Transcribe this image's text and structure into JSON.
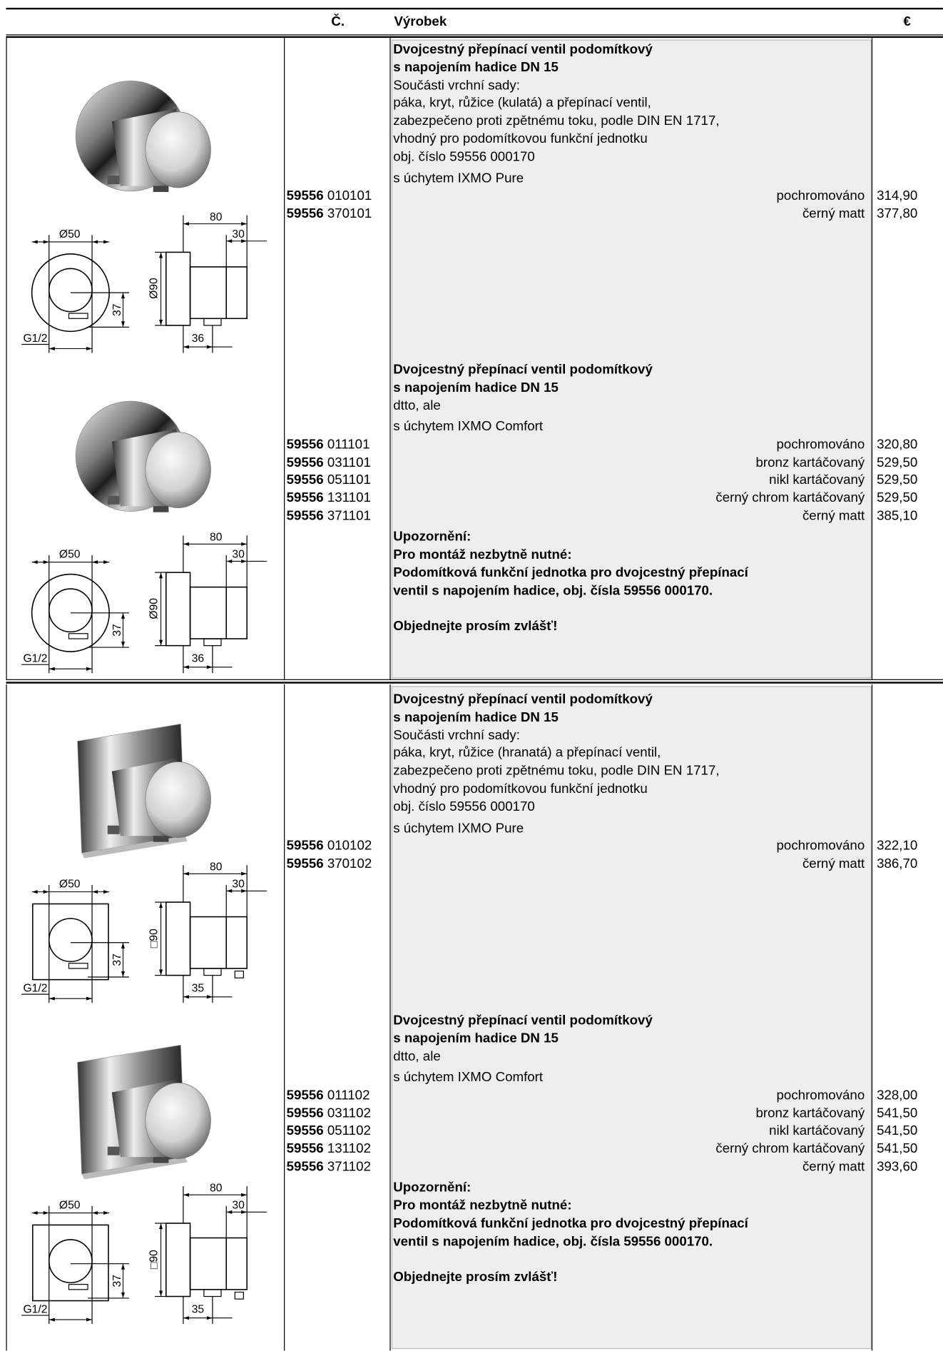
{
  "header": {
    "number": "Č.",
    "product": "Výrobek",
    "price": "€"
  },
  "sections": [
    {
      "items": [
        {
          "title": [
            "Dvojcestný přepínací ventil podomítkový",
            "s napojením hadice DN 15"
          ],
          "description": [
            "Součásti vrchní sady:",
            "páka, kryt, růžice (kulatá) a přepínací ventil,",
            "zabezpečeno proti zpětnému toku, podle DIN EN 1717,",
            "vhodný pro podomítkovou funkční jednotku",
            "obj. číslo 59556 000170"
          ],
          "variant": "s úchytem IXMO Pure",
          "rows": [
            {
              "prefix": "59556",
              "code": "010101",
              "finish": "pochromováno",
              "price": "314,90"
            },
            {
              "prefix": "59556",
              "code": "370101",
              "finish": "černý matt",
              "price": "377,80"
            }
          ],
          "drawing": {
            "diameter": "Ø50",
            "width": "80",
            "depth": "30",
            "height": "37",
            "rosette": "Ø90",
            "thread": "G1/2",
            "offset": "36"
          }
        },
        {
          "title": [
            "Dvojcestný přepínací ventil podomítkový",
            "s napojením hadice DN 15"
          ],
          "description": [
            "dtto, ale"
          ],
          "variant": "s úchytem IXMO Comfort",
          "rows": [
            {
              "prefix": "59556",
              "code": "011101",
              "finish": "pochromováno",
              "price": "320,80"
            },
            {
              "prefix": "59556",
              "code": "031101",
              "finish": "bronz kartáčovaný",
              "price": "529,50"
            },
            {
              "prefix": "59556",
              "code": "051101",
              "finish": "nikl kartáčovaný",
              "price": "529,50"
            },
            {
              "prefix": "59556",
              "code": "131101",
              "finish": "černý chrom kartáčovaný",
              "price": "529,50"
            },
            {
              "prefix": "59556",
              "code": "371101",
              "finish": "černý matt",
              "price": "385,10"
            }
          ],
          "notice": [
            "Upozornění:",
            "Pro montáž nezbytně nutné:",
            "Podomítková funkční jednotka pro dvojcestný přepínací",
            "ventil s napojením hadice, obj. čísla 59556 000170."
          ],
          "order": "Objednejte prosím zvlášť!",
          "drawing": {
            "diameter": "Ø50",
            "width": "80",
            "depth": "30",
            "height": "37",
            "rosette": "Ø90",
            "thread": "G1/2",
            "offset": "36"
          }
        }
      ]
    },
    {
      "items": [
        {
          "title": [
            "Dvojcestný přepínací ventil podomítkový",
            "s napojením hadice DN 15"
          ],
          "description": [
            "Součásti vrchní sady:",
            "páka, kryt, růžice (hranatá) a přepínací ventil,",
            "zabezpečeno proti zpětnému toku, podle DIN EN 1717,",
            "vhodný pro podomítkovou funkční jednotku",
            "obj. číslo 59556 000170"
          ],
          "variant": "s úchytem IXMO Pure",
          "rows": [
            {
              "prefix": "59556",
              "code": "010102",
              "finish": "pochromováno",
              "price": "322,10"
            },
            {
              "prefix": "59556",
              "code": "370102",
              "finish": "černý matt",
              "price": "386,70"
            }
          ],
          "drawing": {
            "diameter": "Ø50",
            "width": "80",
            "depth": "30",
            "height": "37",
            "rosette": "□90",
            "thread": "G1/2",
            "offset": "35"
          }
        },
        {
          "title": [
            "Dvojcestný přepínací ventil podomítkový",
            "s napojením hadice DN 15"
          ],
          "description": [
            "dtto, ale"
          ],
          "variant": "s úchytem IXMO Comfort",
          "rows": [
            {
              "prefix": "59556",
              "code": "011102",
              "finish": "pochromováno",
              "price": "328,00"
            },
            {
              "prefix": "59556",
              "code": "031102",
              "finish": "bronz kartáčovaný",
              "price": "541,50"
            },
            {
              "prefix": "59556",
              "code": "051102",
              "finish": "nikl kartáčovaný",
              "price": "541,50"
            },
            {
              "prefix": "59556",
              "code": "131102",
              "finish": "černý chrom kartáčovaný",
              "price": "541,50"
            },
            {
              "prefix": "59556",
              "code": "371102",
              "finish": "černý matt",
              "price": "393,60"
            }
          ],
          "notice": [
            "Upozornění:",
            "Pro montáž nezbytně nutné:",
            "Podomítková funkční jednotka pro dvojcestný přepínací",
            "ventil s napojením hadice, obj. čísla 59556 000170."
          ],
          "order": "Objednejte prosím zvlášť!",
          "drawing": {
            "diameter": "Ø50",
            "width": "80",
            "depth": "30",
            "height": "37",
            "rosette": "□90",
            "thread": "G1/2",
            "offset": "35"
          }
        }
      ]
    }
  ]
}
